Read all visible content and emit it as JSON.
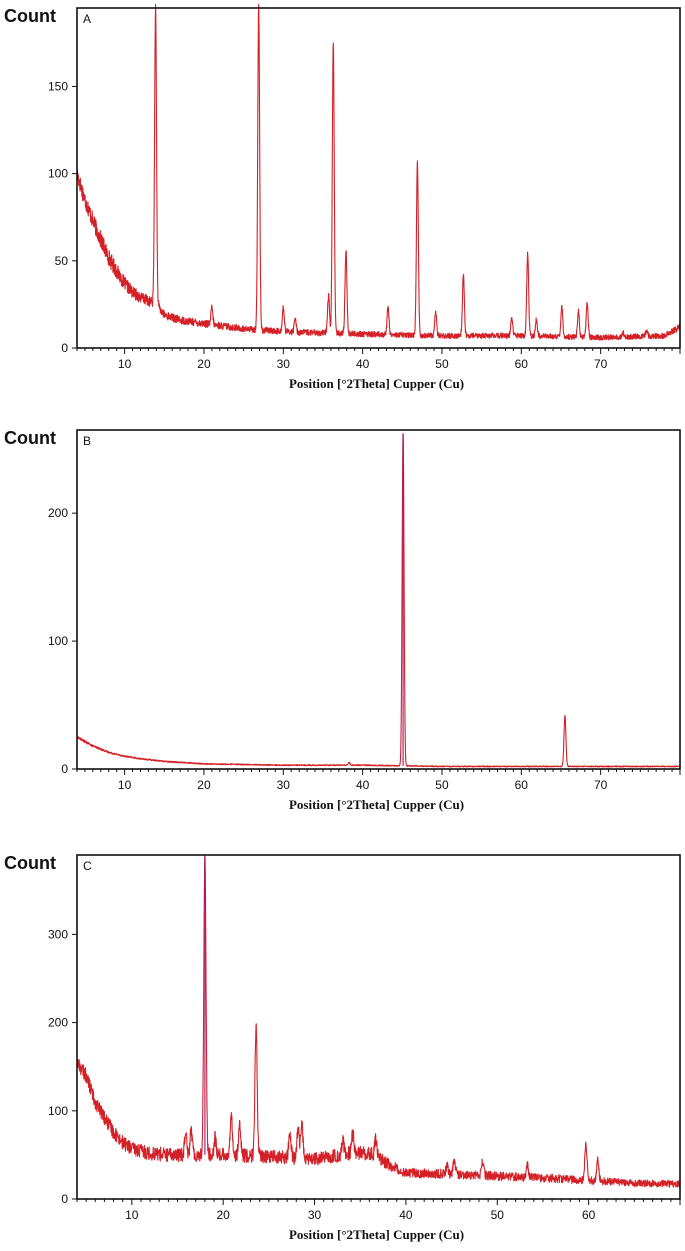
{
  "chart_data": [
    {
      "panel": "A",
      "type": "line",
      "ylabel": "Count",
      "xlabel": "Position [°2Theta] Cupper (Cu)",
      "xlim": [
        4,
        80
      ],
      "ylim": [
        0,
        195
      ],
      "xticks": [
        10,
        20,
        30,
        40,
        50,
        60,
        70
      ],
      "yticks": [
        0,
        50,
        100,
        150
      ],
      "color": "#d42027",
      "baseline": [
        [
          4,
          100
        ],
        [
          5,
          85
        ],
        [
          6,
          73
        ],
        [
          7,
          62
        ],
        [
          8,
          52
        ],
        [
          9,
          44
        ],
        [
          10,
          37
        ],
        [
          11,
          32
        ],
        [
          12,
          29
        ],
        [
          13,
          27
        ],
        [
          14,
          25
        ],
        [
          15,
          19
        ],
        [
          17,
          16
        ],
        [
          20,
          14
        ],
        [
          25,
          11
        ],
        [
          28,
          10
        ],
        [
          32,
          9
        ],
        [
          40,
          8
        ],
        [
          50,
          7
        ],
        [
          60,
          7
        ],
        [
          70,
          6
        ],
        [
          78,
          7
        ],
        [
          80,
          12
        ]
      ],
      "peaks": [
        [
          13.9,
          195
        ],
        [
          21.0,
          23
        ],
        [
          26.9,
          197
        ],
        [
          30.0,
          23
        ],
        [
          31.5,
          17
        ],
        [
          35.7,
          30
        ],
        [
          36.3,
          176
        ],
        [
          37.9,
          56
        ],
        [
          43.2,
          23
        ],
        [
          46.9,
          106
        ],
        [
          49.2,
          21
        ],
        [
          52.7,
          42
        ],
        [
          58.8,
          17
        ],
        [
          60.8,
          54
        ],
        [
          61.9,
          16
        ],
        [
          65.1,
          24
        ],
        [
          67.2,
          21
        ],
        [
          68.3,
          26
        ],
        [
          72.8,
          9
        ],
        [
          75.8,
          10
        ]
      ],
      "noise": 3
    },
    {
      "panel": "B",
      "type": "line",
      "ylabel": "Count",
      "xlabel": "Position [°2Theta] Cupper (Cu)",
      "xlim": [
        4,
        80
      ],
      "ylim": [
        0,
        265
      ],
      "xticks": [
        10,
        20,
        30,
        40,
        50,
        60,
        70
      ],
      "yticks": [
        0,
        100,
        200
      ],
      "color": "#d42027",
      "peak_color": "#a0147a",
      "baseline": [
        [
          4,
          25
        ],
        [
          6,
          18
        ],
        [
          8,
          13
        ],
        [
          10,
          10
        ],
        [
          12,
          8
        ],
        [
          15,
          6
        ],
        [
          20,
          4
        ],
        [
          30,
          3
        ],
        [
          40,
          3
        ],
        [
          50,
          2
        ],
        [
          60,
          2
        ],
        [
          70,
          2
        ],
        [
          80,
          2
        ]
      ],
      "peaks": [
        [
          38.3,
          5
        ],
        [
          45.1,
          262
        ],
        [
          65.5,
          42
        ]
      ],
      "noise": 1
    },
    {
      "panel": "C",
      "type": "line",
      "ylabel": "Count",
      "xlabel": "Position [°2Theta] Cupper (Cu)",
      "xlim": [
        4,
        70
      ],
      "ylim": [
        0,
        390
      ],
      "xticks": [
        10,
        20,
        30,
        40,
        50,
        60
      ],
      "yticks": [
        0,
        100,
        200,
        300
      ],
      "color": "#d42027",
      "peak_color": "#a0147a",
      "baseline": [
        [
          4,
          155
        ],
        [
          5,
          140
        ],
        [
          6,
          110
        ],
        [
          7,
          92
        ],
        [
          8,
          76
        ],
        [
          9,
          64
        ],
        [
          10,
          57
        ],
        [
          12,
          52
        ],
        [
          14,
          50
        ],
        [
          16,
          50
        ],
        [
          18,
          50
        ],
        [
          20,
          50
        ],
        [
          25,
          48
        ],
        [
          30,
          45
        ],
        [
          32,
          48
        ],
        [
          34,
          52
        ],
        [
          36,
          52
        ],
        [
          38,
          40
        ],
        [
          40,
          30
        ],
        [
          45,
          28
        ],
        [
          50,
          26
        ],
        [
          55,
          24
        ],
        [
          60,
          21
        ],
        [
          65,
          18
        ],
        [
          70,
          17
        ]
      ],
      "peaks": [
        [
          15.9,
          80
        ],
        [
          16.5,
          78
        ],
        [
          18.0,
          390
        ],
        [
          19.1,
          70
        ],
        [
          20.9,
          95
        ],
        [
          21.8,
          82
        ],
        [
          23.6,
          197
        ],
        [
          27.3,
          75
        ],
        [
          28.2,
          80
        ],
        [
          28.6,
          87
        ],
        [
          33.1,
          65
        ],
        [
          34.2,
          75
        ],
        [
          36.7,
          68
        ],
        [
          44.5,
          38
        ],
        [
          45.3,
          45
        ],
        [
          48.4,
          42
        ],
        [
          53.3,
          38
        ],
        [
          59.7,
          62
        ],
        [
          61.0,
          45
        ]
      ],
      "noise": 5
    }
  ]
}
